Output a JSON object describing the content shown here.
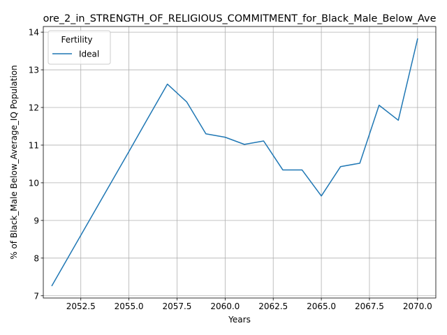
{
  "chart_data": {
    "type": "line",
    "title": "ore_2_in_STRENGTH_OF_RELIGIOUS_COMMITMENT_for_Black_Male_Below_Ave",
    "xlabel": "Years",
    "ylabel": "% of Black_Male Below_Average_IQ Population",
    "xlim": [
      2050.55,
      2070.95
    ],
    "ylim": [
      6.94,
      14.15
    ],
    "xticks": [
      2052.5,
      2055.0,
      2057.5,
      2060.0,
      2062.5,
      2065.0,
      2067.5,
      2070.0
    ],
    "xtick_labels": [
      "2052.5",
      "2055.0",
      "2057.5",
      "2060.0",
      "2062.5",
      "2065.0",
      "2067.5",
      "2070.0"
    ],
    "yticks": [
      7,
      8,
      9,
      10,
      11,
      12,
      13,
      14
    ],
    "ytick_labels": [
      "7",
      "8",
      "9",
      "10",
      "11",
      "12",
      "13",
      "14"
    ],
    "grid": true,
    "legend": {
      "title": "Fertility",
      "position": "upper-left"
    },
    "series": [
      {
        "name": "Ideal",
        "color": "#1f77b4",
        "x": [
          2051,
          2052,
          2053,
          2054,
          2055,
          2056,
          2057,
          2058,
          2059,
          2060,
          2061,
          2062,
          2063,
          2064,
          2065,
          2066,
          2067,
          2068,
          2069,
          2070
        ],
        "y": [
          7.27,
          8.16,
          9.05,
          9.94,
          10.83,
          11.73,
          12.62,
          12.15,
          11.3,
          11.21,
          11.02,
          11.11,
          10.34,
          10.34,
          9.65,
          10.43,
          10.52,
          12.06,
          11.66,
          13.82
        ]
      }
    ]
  }
}
